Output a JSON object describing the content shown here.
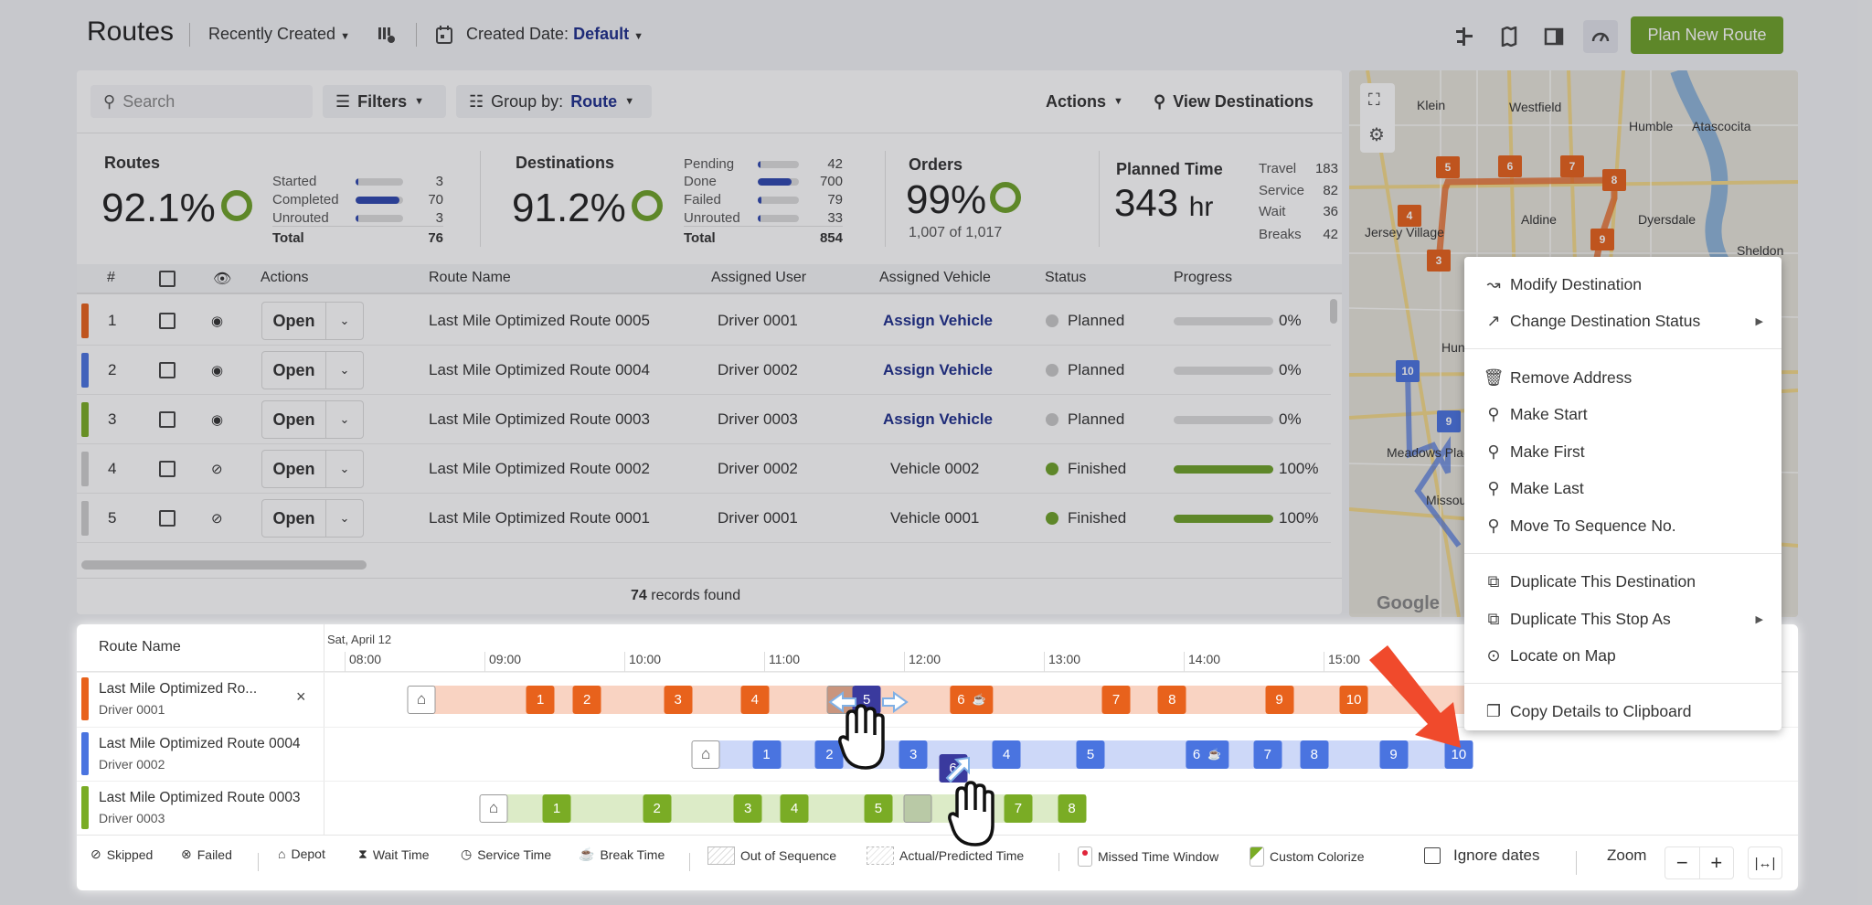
{
  "header": {
    "title": "Routes",
    "sort_label": "Recently Created",
    "date_label": "Created Date:",
    "date_value": "Default",
    "plan_button": "Plan New Route"
  },
  "toolbar": {
    "search_placeholder": "Search",
    "filters": "Filters",
    "group_label": "Group by:",
    "group_value": "Route",
    "actions": "Actions",
    "view_destinations": "View Destinations"
  },
  "stats": {
    "routes": {
      "title": "Routes",
      "percent": "92.1%",
      "rows": [
        {
          "label": "Started",
          "value": "3",
          "fill": 0.04
        },
        {
          "label": "Completed",
          "value": "70",
          "fill": 0.92
        },
        {
          "label": "Unrouted",
          "value": "3",
          "fill": 0.04
        }
      ],
      "total_label": "Total",
      "total": "76"
    },
    "destinations": {
      "title": "Destinations",
      "percent": "91.2%",
      "rows": [
        {
          "label": "Pending",
          "value": "42",
          "fill": 0.05
        },
        {
          "label": "Done",
          "value": "700",
          "fill": 0.82
        },
        {
          "label": "Failed",
          "value": "79",
          "fill": 0.09
        },
        {
          "label": "Unrouted",
          "value": "33",
          "fill": 0.04
        }
      ],
      "total_label": "Total",
      "total": "854"
    },
    "orders": {
      "title": "Orders",
      "percent": "99%",
      "sub": "1,007 of 1,017"
    },
    "planned": {
      "title": "Planned Time",
      "value": "343",
      "unit": "hr",
      "rows": [
        {
          "label": "Travel",
          "value": "183"
        },
        {
          "label": "Service",
          "value": "82"
        },
        {
          "label": "Wait",
          "value": "36"
        },
        {
          "label": "Breaks",
          "value": "42"
        }
      ]
    }
  },
  "table": {
    "columns": {
      "num": "#",
      "actions": "Actions",
      "route": "Route Name",
      "user": "Assigned User",
      "vehicle": "Assigned Vehicle",
      "status": "Status",
      "progress": "Progress"
    },
    "open_label": "Open",
    "rows": [
      {
        "n": "1",
        "color": "#e8621c",
        "visible": true,
        "route": "Last Mile Optimized Route 0005",
        "user": "Driver 0001",
        "vehicle": "Assign Vehicle",
        "vehicle_link": true,
        "status": "Planned",
        "status_color": "#c8c8c8",
        "progress": 0,
        "progress_label": "0%"
      },
      {
        "n": "2",
        "color": "#4a74e0",
        "visible": true,
        "route": "Last Mile Optimized Route 0004",
        "user": "Driver 0002",
        "vehicle": "Assign Vehicle",
        "vehicle_link": true,
        "status": "Planned",
        "status_color": "#c8c8c8",
        "progress": 0,
        "progress_label": "0%"
      },
      {
        "n": "3",
        "color": "#7aac25",
        "visible": true,
        "route": "Last Mile Optimized Route 0003",
        "user": "Driver 0003",
        "vehicle": "Assign Vehicle",
        "vehicle_link": true,
        "status": "Planned",
        "status_color": "#c8c8c8",
        "progress": 0,
        "progress_label": "0%"
      },
      {
        "n": "4",
        "color": "#cfcfcf",
        "visible": false,
        "route": "Last Mile Optimized Route 0002",
        "user": "Driver 0002",
        "vehicle": "Vehicle 0002",
        "vehicle_link": false,
        "status": "Finished",
        "status_color": "#6fa22a",
        "progress": 100,
        "progress_label": "100%"
      },
      {
        "n": "5",
        "color": "#cfcfcf",
        "visible": false,
        "route": "Last Mile Optimized Route 0001",
        "user": "Driver 0001",
        "vehicle": "Vehicle 0001",
        "vehicle_link": false,
        "status": "Finished",
        "status_color": "#6fa22a",
        "progress": 100,
        "progress_label": "100%"
      }
    ],
    "records_count": "74",
    "records_label": "records found"
  },
  "map": {
    "labels": [
      "Klein",
      "Westfield",
      "Humble",
      "Atascocita",
      "Aldine",
      "Dyersdale",
      "Jersey Village",
      "Sheldon",
      "Hunters Creek Village",
      "Meadows Place",
      "Missouri City"
    ],
    "orange_markers": [
      "3",
      "4",
      "5",
      "6",
      "7",
      "8",
      "9"
    ],
    "blue_markers": [
      "9",
      "10"
    ],
    "logo": "Google"
  },
  "timeline": {
    "header": "Route Name",
    "date": "Sat, April 12",
    "hours": [
      "08:00",
      "09:00",
      "10:00",
      "11:00",
      "12:00",
      "13:00",
      "14:00",
      "15:00"
    ],
    "routes": [
      {
        "name": "Last Mile Optimized Ro...",
        "driver": "Driver 0001",
        "color": "#e8621c",
        "bar": "#f9d3c2",
        "ghost": "#c9957e",
        "start": "08:33",
        "end": "17:00",
        "closable": true,
        "stops": [
          {
            "label": "1",
            "time": "09:24"
          },
          {
            "label": "2",
            "time": "09:44"
          },
          {
            "label": "3",
            "time": "10:23"
          },
          {
            "label": "4",
            "time": "10:56"
          },
          {
            "label": "",
            "time": "11:33",
            "ghost": true
          },
          {
            "label": "5",
            "time": "11:44",
            "dragging": true
          },
          {
            "label": "6",
            "time": "12:29",
            "break": true
          },
          {
            "label": "7",
            "time": "13:31"
          },
          {
            "label": "8",
            "time": "13:55"
          },
          {
            "label": "9",
            "time": "14:41"
          },
          {
            "label": "10",
            "time": "15:13"
          }
        ]
      },
      {
        "name": "Last Mile Optimized Route 0004",
        "driver": "Driver 0002",
        "color": "#4a74e0",
        "bar": "#cdd8f8",
        "ghost": "#a8b8e8",
        "start": "10:35",
        "end": "16:04",
        "closable": false,
        "stops": [
          {
            "label": "1",
            "time": "11:01"
          },
          {
            "label": "2",
            "time": "11:28"
          },
          {
            "label": "3",
            "time": "12:04"
          },
          {
            "label": "4",
            "time": "12:44"
          },
          {
            "label": "5",
            "time": "13:20"
          },
          {
            "label": "6",
            "time": "14:10",
            "break": true
          },
          {
            "label": "7",
            "time": "14:36"
          },
          {
            "label": "8",
            "time": "14:56"
          },
          {
            "label": "9",
            "time": "15:30"
          },
          {
            "label": "10",
            "time": "15:58"
          }
        ]
      },
      {
        "name": "Last Mile Optimized Route 0003",
        "driver": "Driver 0003",
        "color": "#7aac25",
        "bar": "#dcebc7",
        "ghost": "#b9c9a6",
        "start": "09:04",
        "end": "13:18",
        "closable": false,
        "stops": [
          {
            "label": "1",
            "time": "09:31"
          },
          {
            "label": "2",
            "time": "10:14"
          },
          {
            "label": "3",
            "time": "10:53"
          },
          {
            "label": "4",
            "time": "11:13"
          },
          {
            "label": "5",
            "time": "11:49"
          },
          {
            "label": "",
            "time": "12:06",
            "ghost": true
          },
          {
            "label": "7",
            "time": "12:49"
          },
          {
            "label": "8",
            "time": "13:12"
          }
        ]
      }
    ],
    "floating_stop": {
      "label": "6",
      "time": "12:21",
      "color": "#3a3a9e"
    },
    "legend": {
      "skipped": "Skipped",
      "failed": "Failed",
      "depot": "Depot",
      "wait": "Wait Time",
      "service": "Service Time",
      "break": "Break Time",
      "out_of_sequence": "Out of Sequence",
      "actual": "Actual/Predicted Time",
      "missed": "Missed Time Window",
      "custom": "Custom Colorize",
      "ignore_dates": "Ignore dates",
      "zoom": "Zoom"
    }
  },
  "context_menu": {
    "items": [
      {
        "label": "Modify Destination",
        "icon": "modify-route-icon"
      },
      {
        "label": "Change Destination Status",
        "icon": "route-status-icon",
        "submenu": true
      },
      {
        "label": "Remove Address",
        "icon": "trash-icon"
      },
      {
        "label": "Make Start",
        "icon": "pin-start-icon"
      },
      {
        "label": "Make First",
        "icon": "pin-first-icon"
      },
      {
        "label": "Make Last",
        "icon": "pin-last-icon"
      },
      {
        "label": "Move To Sequence No.",
        "icon": "pin-sequence-icon"
      },
      {
        "label": "Duplicate This Destination",
        "icon": "duplicate-icon"
      },
      {
        "label": "Duplicate This Stop As",
        "icon": "duplicate-icon",
        "submenu": true
      },
      {
        "label": "Locate on Map",
        "icon": "locate-icon"
      },
      {
        "label": "Copy Details to Clipboard",
        "icon": "copy-icon"
      }
    ]
  },
  "colors": {
    "accent": "#6fa22a",
    "link": "#1f2f8c",
    "annotation_arrow": "#f04a2c"
  }
}
